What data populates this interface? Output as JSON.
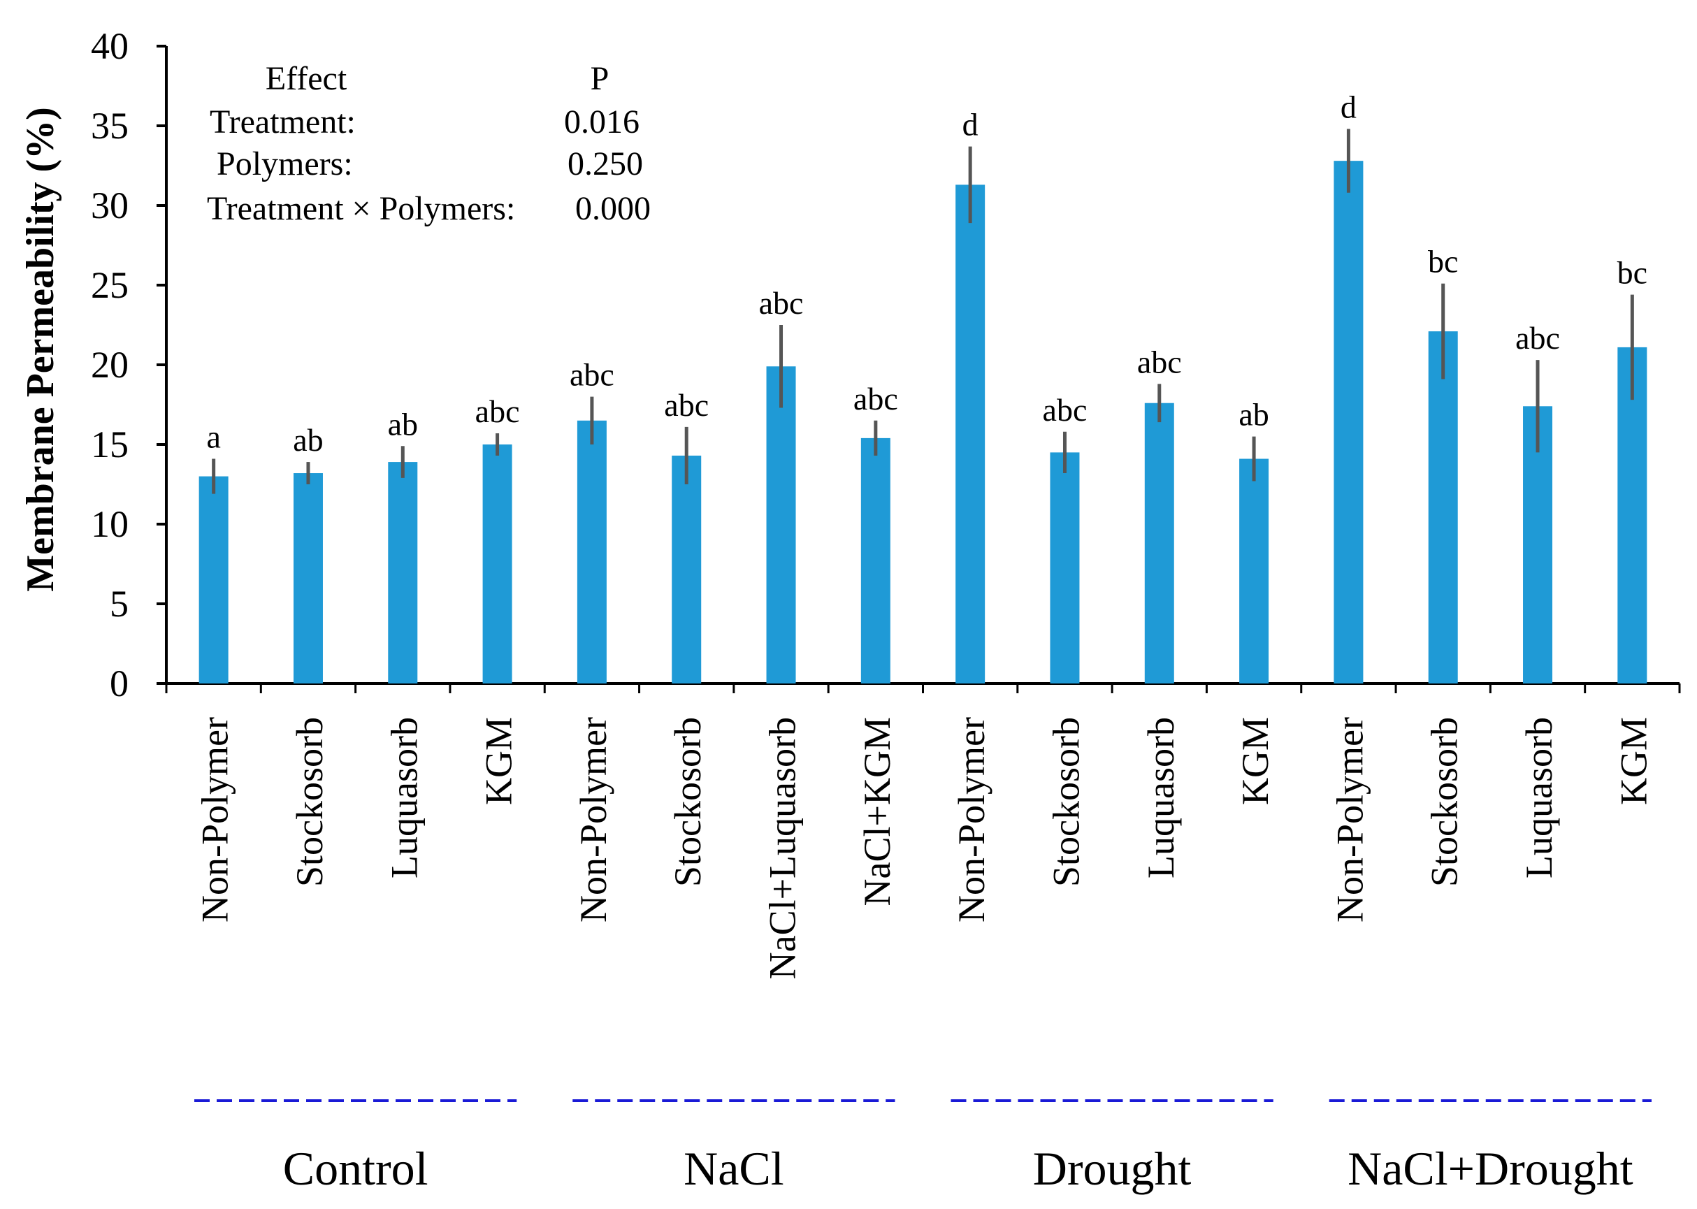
{
  "chart_data": {
    "type": "bar",
    "title": "",
    "xlabel": "",
    "ylabel": "Membrane Permeability (%)",
    "ylim": [
      0,
      40
    ],
    "yticks": [
      0,
      5,
      10,
      15,
      20,
      25,
      30,
      35,
      40
    ],
    "bar_color": "#1f9ad6",
    "error_color": "#555555",
    "group_line_color": "#1a1ad6",
    "categories": [
      "Non-Polymer",
      "Stockosorb",
      "Luquasorb",
      "KGM",
      "Non-Polymer",
      "Stockosorb",
      "NaCl+Luquasorb",
      "NaCl+KGM",
      "Non-Polymer",
      "Stockosorb",
      "Luquasorb",
      "KGM",
      "Non-Polymer",
      "Stockosorb",
      "Luquasorb",
      "KGM"
    ],
    "values": [
      13.0,
      13.2,
      13.9,
      15.0,
      16.5,
      14.3,
      19.9,
      15.4,
      31.3,
      14.5,
      17.6,
      14.1,
      32.8,
      22.1,
      17.4,
      21.1
    ],
    "errors": [
      1.1,
      0.7,
      1.0,
      0.7,
      1.5,
      1.8,
      2.6,
      1.1,
      2.4,
      1.3,
      1.2,
      1.4,
      2.0,
      3.0,
      2.9,
      3.3
    ],
    "significance": [
      "a",
      "ab",
      "ab",
      "abc",
      "abc",
      "abc",
      "abc",
      "abc",
      "d",
      "abc",
      "abc",
      "ab",
      "d",
      "bc",
      "abc",
      "bc"
    ],
    "groups": [
      {
        "name": "Control",
        "size": 4
      },
      {
        "name": "NaCl",
        "size": 4
      },
      {
        "name": "Drought",
        "size": 4
      },
      {
        "name": "NaCl+Drought",
        "size": 4
      }
    ],
    "stats_table": {
      "header": [
        "Effect",
        "P"
      ],
      "rows": [
        [
          "Treatment:",
          "0.016"
        ],
        [
          "Polymers:",
          "0.250"
        ],
        [
          "Treatment × Polymers:",
          "0.000"
        ]
      ]
    }
  }
}
